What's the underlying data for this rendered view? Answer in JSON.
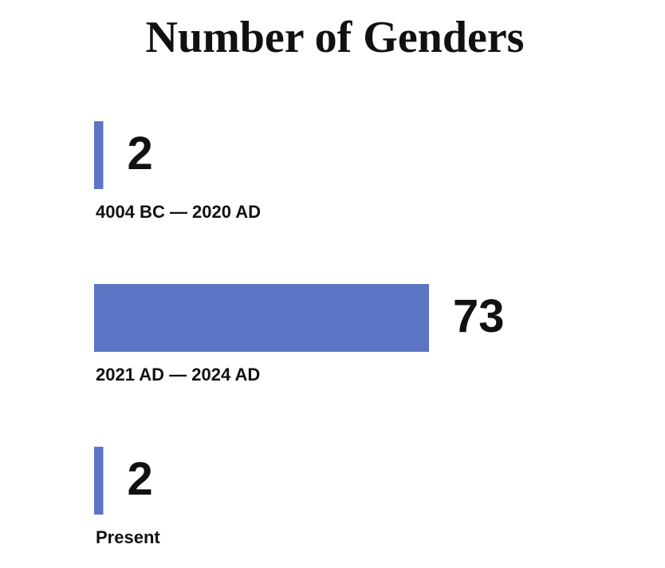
{
  "chart_data": {
    "type": "hbar",
    "title": "Number of Genders",
    "categories": [
      "4004 BC — 2020 AD",
      "2021 AD — 2024 AD",
      "Present"
    ],
    "values": [
      2,
      73,
      2
    ],
    "color": "#5b74c4"
  }
}
